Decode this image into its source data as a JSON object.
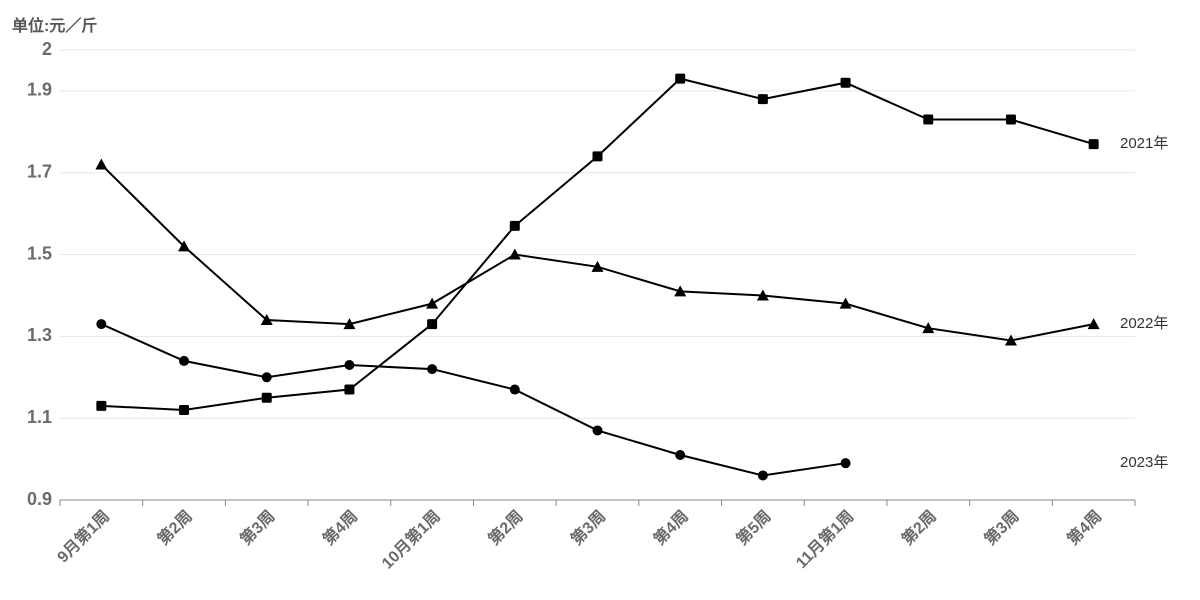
{
  "chart_data": {
    "type": "line",
    "y_label": "单位:元／斤",
    "categories": [
      "9月第1周",
      "第2周",
      "第3周",
      "第4周",
      "10月第1周",
      "第2周",
      "第3周",
      "第4周",
      "第5周",
      "11月第1周",
      "第2周",
      "第3周",
      "第4周"
    ],
    "series": [
      {
        "name": "2021年",
        "color": "#000000",
        "marker": "square",
        "values": [
          1.13,
          1.12,
          1.15,
          1.17,
          1.33,
          1.57,
          1.74,
          1.93,
          1.88,
          1.92,
          1.83,
          1.83,
          1.77
        ]
      },
      {
        "name": "2022年",
        "color": "#000000",
        "marker": "triangle",
        "values": [
          1.72,
          1.52,
          1.34,
          1.33,
          1.38,
          1.5,
          1.47,
          1.41,
          1.4,
          1.38,
          1.32,
          1.29,
          1.33
        ]
      },
      {
        "name": "2023年",
        "color": "#000000",
        "marker": "circle",
        "values": [
          1.33,
          1.24,
          1.2,
          1.23,
          1.22,
          1.17,
          1.07,
          1.01,
          0.96,
          0.99,
          null,
          null,
          null
        ]
      }
    ],
    "ylim": [
      0.9,
      2
    ],
    "yticks": [
      0.9,
      1.1,
      1.3,
      1.5,
      1.7,
      1.9,
      2
    ],
    "grid": true
  }
}
